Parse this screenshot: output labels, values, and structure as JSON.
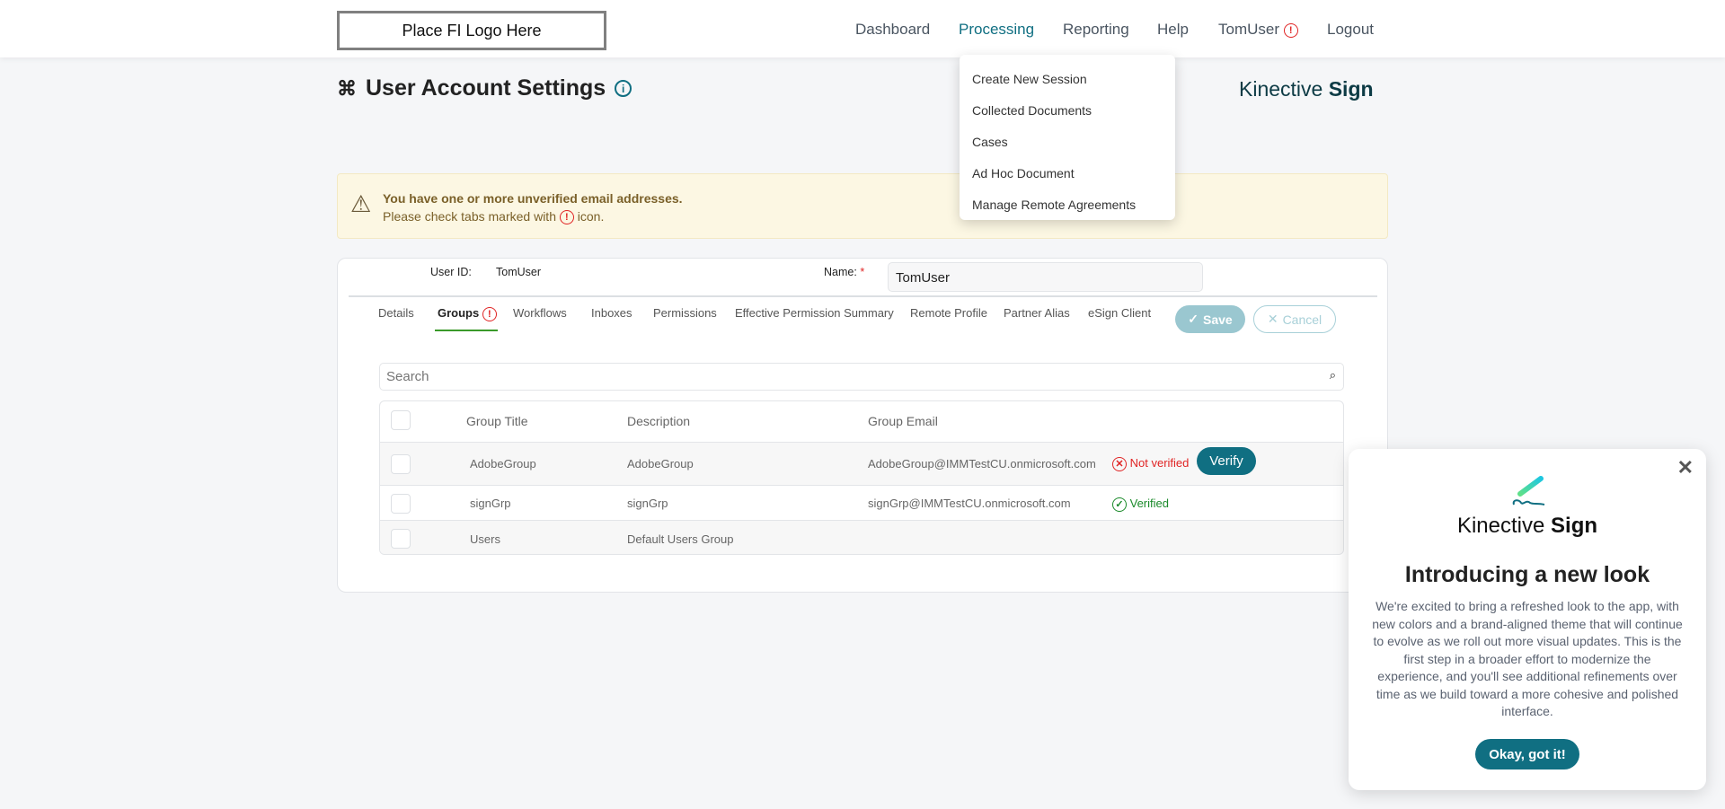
{
  "header": {
    "logo": "Place FI Logo Here",
    "nav": [
      "Dashboard",
      "Processing",
      "Reporting",
      "Help",
      "TomUser",
      "Logout"
    ],
    "active": "Processing"
  },
  "dropdown": [
    "Create New Session",
    "Collected Documents",
    "Cases",
    "Ad Hoc Document",
    "Manage Remote Agreements"
  ],
  "page": {
    "title": "User Account Settings",
    "brand_light": "Kinective",
    "brand_bold": "Sign"
  },
  "banner": {
    "title": "You have one or more unverified email addresses.",
    "text_pre": "Please check tabs marked with",
    "text_post": "icon."
  },
  "user": {
    "id_label": "User ID:",
    "id_value": "TomUser",
    "name_label": "Name:",
    "required": "*",
    "name_value": "TomUser"
  },
  "tabs": [
    "Details",
    "Groups",
    "Workflows",
    "Inboxes",
    "Permissions",
    "Effective Permission Summary",
    "Remote Profile",
    "Partner Alias",
    "eSign Client"
  ],
  "actions": {
    "save": "Save",
    "cancel": "Cancel"
  },
  "search": {
    "placeholder": "Search"
  },
  "table": {
    "headers": [
      "Group Title",
      "Description",
      "Group Email"
    ],
    "rows": [
      {
        "title": "AdobeGroup",
        "description": "AdobeGroup",
        "email": "AdobeGroup@IMMTestCU.onmicrosoft.com",
        "status": "Not verified",
        "action": "Verify"
      },
      {
        "title": "signGrp",
        "description": "signGrp",
        "email": "signGrp@IMMTestCU.onmicrosoft.com",
        "status": "Verified"
      },
      {
        "title": "Users",
        "description": "Default Users Group",
        "email": ""
      }
    ]
  },
  "popup": {
    "brand_light": "Kinective",
    "brand_bold": "Sign",
    "heading": "Introducing a new look",
    "body": "We're excited to bring a refreshed look to the app, with new colors and a brand-aligned theme that will continue to evolve as we roll out more visual updates. This is the first step in a broader effort to modernize the experience, and you'll see additional refinements over time as we build toward a more cohesive and polished interface.",
    "button": "Okay, got it!"
  },
  "colors": {
    "accent": "#106f82",
    "error": "#e02424",
    "success": "#1a8a2a"
  }
}
